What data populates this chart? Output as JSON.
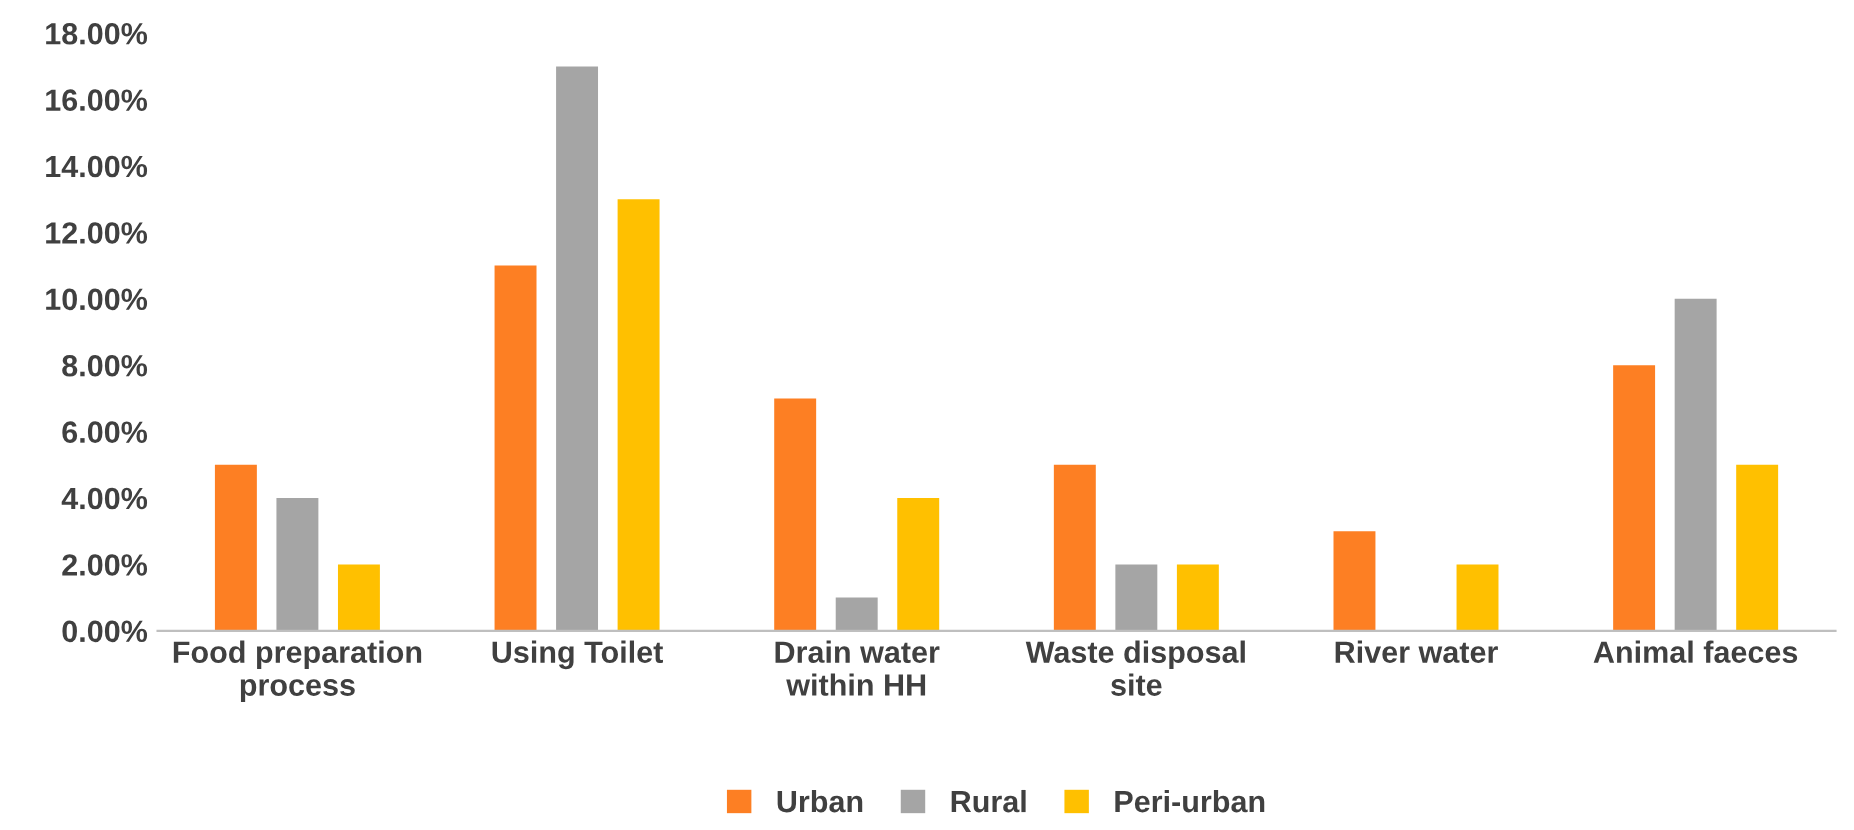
{
  "chart_data": {
    "type": "bar",
    "categories": [
      "Food preparation process",
      "Using Toilet",
      "Drain water within HH",
      "Waste disposal site",
      "River water",
      "Animal faeces"
    ],
    "series": [
      {
        "name": "Urban",
        "color": "#fd7f23",
        "values": [
          5,
          11,
          7,
          5,
          3,
          8
        ]
      },
      {
        "name": "Rural",
        "color": "#a5a5a5",
        "values": [
          4,
          17,
          1,
          2,
          0,
          10
        ]
      },
      {
        "name": "Peri-urban",
        "color": "#ffc000",
        "values": [
          2,
          13,
          4,
          2,
          2,
          5
        ]
      }
    ],
    "ylim": [
      0,
      18
    ],
    "yticks": [
      {
        "value": 0,
        "label": "0.00%"
      },
      {
        "value": 2,
        "label": "2.00%"
      },
      {
        "value": 4,
        "label": "4.00%"
      },
      {
        "value": 6,
        "label": "6.00%"
      },
      {
        "value": 8,
        "label": "8.00%"
      },
      {
        "value": 10,
        "label": "10.00%"
      },
      {
        "value": 12,
        "label": "12.00%"
      },
      {
        "value": 14,
        "label": "14.00%"
      },
      {
        "value": 16,
        "label": "16.00%"
      },
      {
        "value": 18,
        "label": "18.00%"
      }
    ],
    "grid": false,
    "legend": "bottom"
  }
}
